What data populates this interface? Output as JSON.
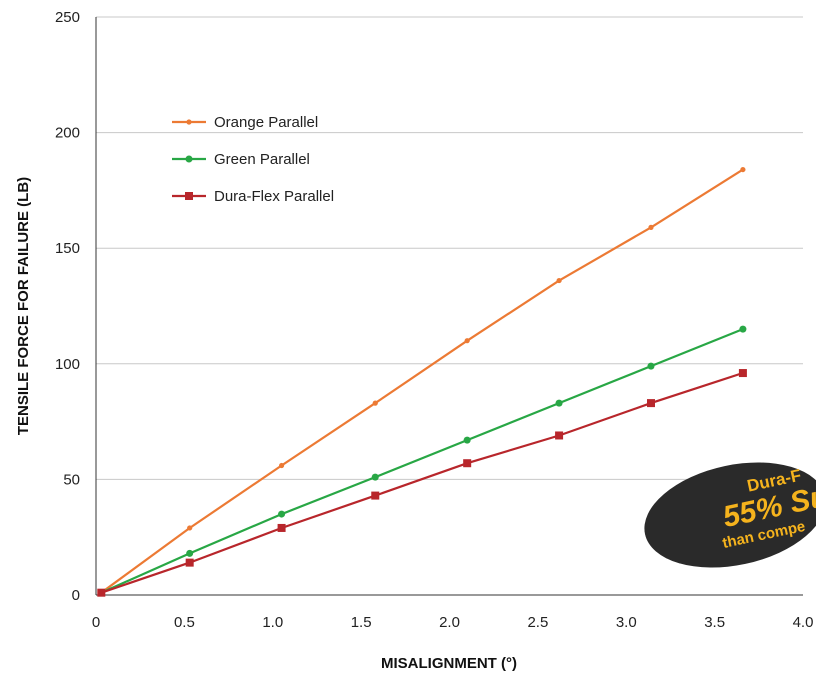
{
  "chart_data": {
    "type": "line",
    "xlabel": "MISALIGNMENT (°)",
    "ylabel": "TENSILE FORCE FOR FAILURE (LB)",
    "xlim": [
      0,
      4.0
    ],
    "ylim": [
      0,
      250
    ],
    "x_ticks": [
      "0",
      "0.5",
      "1.0",
      "1.5",
      "2.0",
      "2.5",
      "3.0",
      "3.5",
      "4.0"
    ],
    "y_ticks": [
      "0",
      "50",
      "100",
      "150",
      "200",
      "250"
    ],
    "grid": "horizontal",
    "legend_position": "top-left",
    "x": [
      0.03,
      0.53,
      1.05,
      1.58,
      2.1,
      2.62,
      3.14,
      3.66
    ],
    "series": [
      {
        "name": "Orange Parallel",
        "color": "#ec7a34",
        "marker": "small-dot",
        "values": [
          1,
          29,
          56,
          83,
          110,
          136,
          159,
          184
        ]
      },
      {
        "name": "Green Parallel",
        "color": "#28a745",
        "marker": "dot",
        "values": [
          1,
          18,
          35,
          51,
          67,
          83,
          99,
          115
        ]
      },
      {
        "name": "Dura-Flex Parallel",
        "color": "#b8262b",
        "marker": "square",
        "values": [
          1,
          14,
          29,
          43,
          57,
          69,
          83,
          96
        ]
      }
    ],
    "callout": {
      "line1": "Dura-F",
      "line2": "55% Su",
      "line3": "than compe",
      "background": "#2a2a2a",
      "text_color": "#f5b31d"
    }
  }
}
